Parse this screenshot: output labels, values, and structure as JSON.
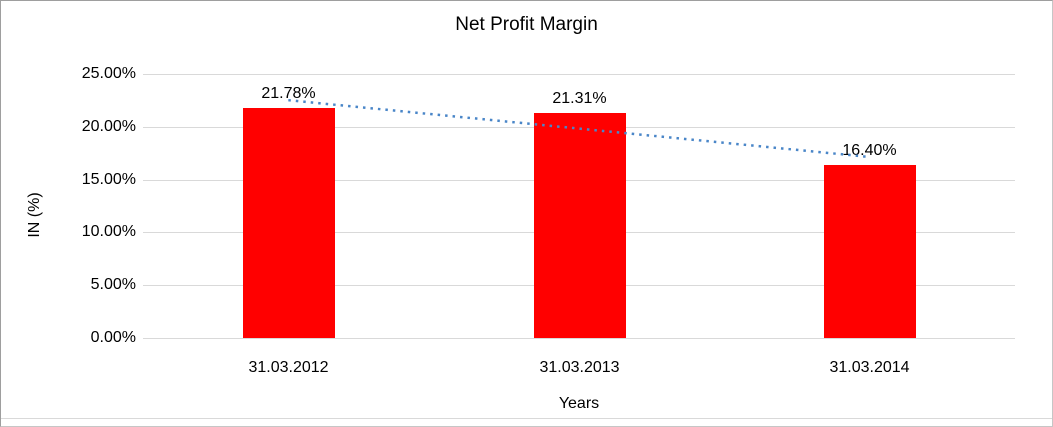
{
  "chart_data": {
    "type": "bar",
    "title": "Net Profit Margin",
    "xlabel": "Years",
    "ylabel": "IN (%)",
    "categories": [
      "31.03.2012",
      "31.03.2013",
      "31.03.2014"
    ],
    "values": [
      21.78,
      21.31,
      16.4
    ],
    "value_labels": [
      "21.78%",
      "21.31%",
      "16.40%"
    ],
    "ytick_labels": [
      "25.00%",
      "20.00%",
      "15.00%",
      "10.00%",
      "5.00%",
      "0.00%"
    ],
    "ylim": [
      0,
      25
    ],
    "grid": true,
    "legend": "none",
    "bar_color": "#ff0000",
    "gridline_color": "#d9d9d9",
    "trendline": {
      "style": "dotted",
      "color": "#4a86c8",
      "fit": "linear"
    }
  }
}
